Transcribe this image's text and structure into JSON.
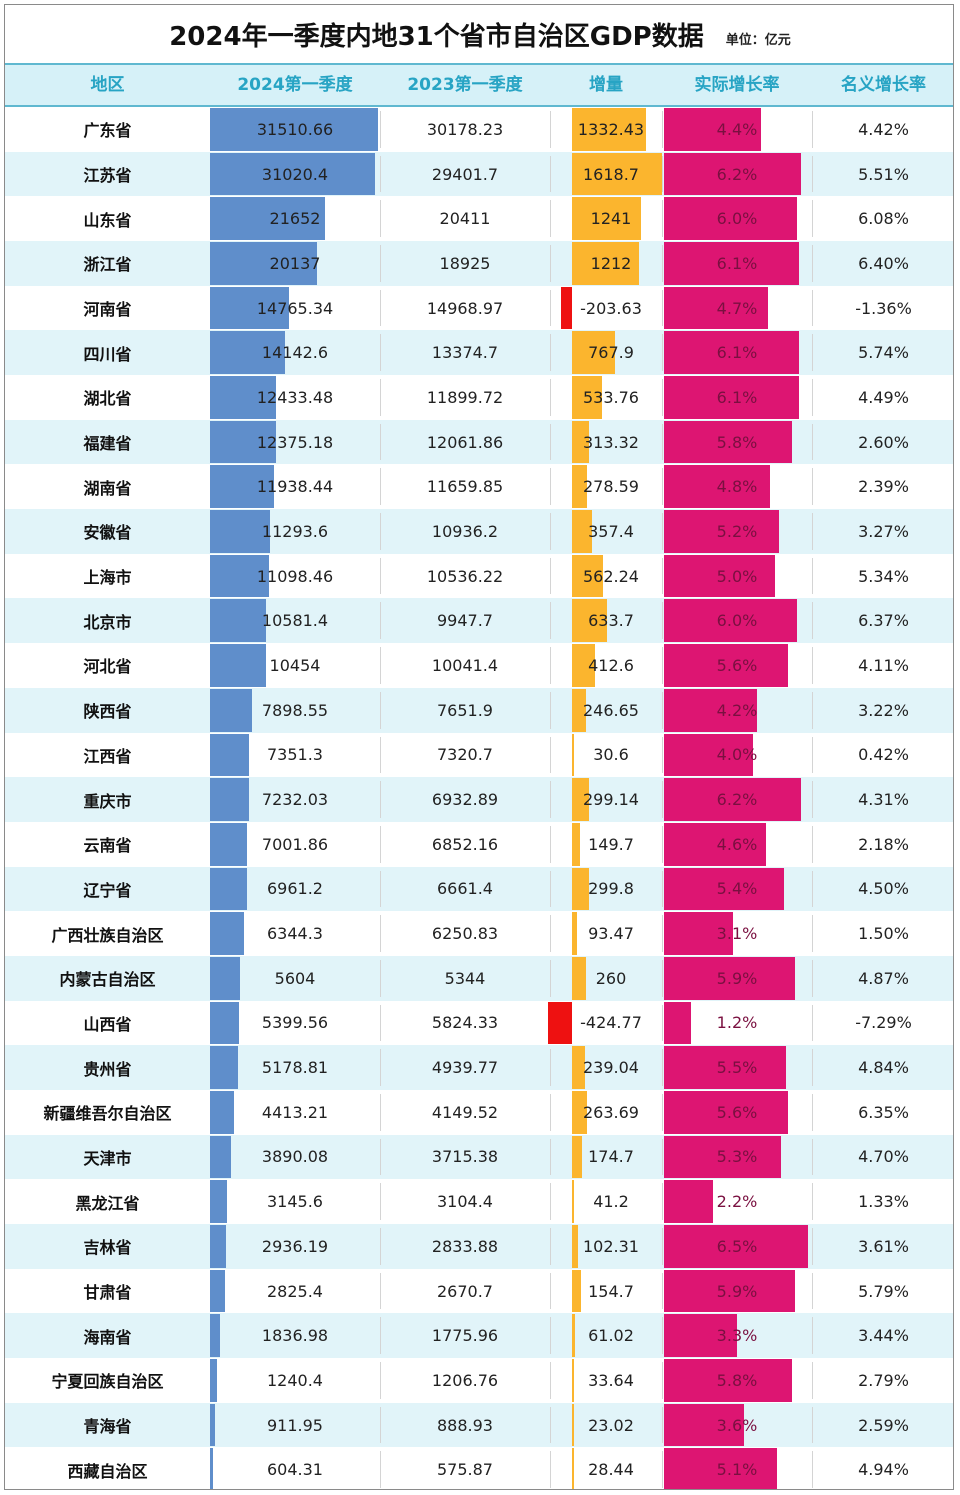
{
  "title": "2024年一季度内地31个省市自治区GDP数据",
  "unit_label": "单位：亿元",
  "headers": [
    "地区",
    "2024第一季度",
    "2023第一季度",
    "增量",
    "实际增长率",
    "名义增长率"
  ],
  "colors": {
    "gdp_bar": "#5f8ecb",
    "increase_bar": "#fbb52e",
    "decrease_bar": "#ee1111",
    "real_growth_bar": "#dd1572",
    "header_bg": "#d6f1f8",
    "header_text": "#27a4c4",
    "alt_row_bg": "#e1f4f9"
  },
  "rows": [
    {
      "region": "广东省",
      "gdp_2024": "31510.66",
      "gdp_2023": "30178.23",
      "increase": "1332.43",
      "real_growth": "4.4%",
      "nominal_growth": "4.42%"
    },
    {
      "region": "江苏省",
      "gdp_2024": "31020.4",
      "gdp_2023": "29401.7",
      "increase": "1618.7",
      "real_growth": "6.2%",
      "nominal_growth": "5.51%"
    },
    {
      "region": "山东省",
      "gdp_2024": "21652",
      "gdp_2023": "20411",
      "increase": "1241",
      "real_growth": "6.0%",
      "nominal_growth": "6.08%"
    },
    {
      "region": "浙江省",
      "gdp_2024": "20137",
      "gdp_2023": "18925",
      "increase": "1212",
      "real_growth": "6.1%",
      "nominal_growth": "6.40%"
    },
    {
      "region": "河南省",
      "gdp_2024": "14765.34",
      "gdp_2023": "14968.97",
      "increase": "-203.63",
      "real_growth": "4.7%",
      "nominal_growth": "-1.36%"
    },
    {
      "region": "四川省",
      "gdp_2024": "14142.6",
      "gdp_2023": "13374.7",
      "increase": "767.9",
      "real_growth": "6.1%",
      "nominal_growth": "5.74%"
    },
    {
      "region": "湖北省",
      "gdp_2024": "12433.48",
      "gdp_2023": "11899.72",
      "increase": "533.76",
      "real_growth": "6.1%",
      "nominal_growth": "4.49%"
    },
    {
      "region": "福建省",
      "gdp_2024": "12375.18",
      "gdp_2023": "12061.86",
      "increase": "313.32",
      "real_growth": "5.8%",
      "nominal_growth": "2.60%"
    },
    {
      "region": "湖南省",
      "gdp_2024": "11938.44",
      "gdp_2023": "11659.85",
      "increase": "278.59",
      "real_growth": "4.8%",
      "nominal_growth": "2.39%"
    },
    {
      "region": "安徽省",
      "gdp_2024": "11293.6",
      "gdp_2023": "10936.2",
      "increase": "357.4",
      "real_growth": "5.2%",
      "nominal_growth": "3.27%"
    },
    {
      "region": "上海市",
      "gdp_2024": "11098.46",
      "gdp_2023": "10536.22",
      "increase": "562.24",
      "real_growth": "5.0%",
      "nominal_growth": "5.34%"
    },
    {
      "region": "北京市",
      "gdp_2024": "10581.4",
      "gdp_2023": "9947.7",
      "increase": "633.7",
      "real_growth": "6.0%",
      "nominal_growth": "6.37%"
    },
    {
      "region": "河北省",
      "gdp_2024": "10454",
      "gdp_2023": "10041.4",
      "increase": "412.6",
      "real_growth": "5.6%",
      "nominal_growth": "4.11%"
    },
    {
      "region": "陕西省",
      "gdp_2024": "7898.55",
      "gdp_2023": "7651.9",
      "increase": "246.65",
      "real_growth": "4.2%",
      "nominal_growth": "3.22%"
    },
    {
      "region": "江西省",
      "gdp_2024": "7351.3",
      "gdp_2023": "7320.7",
      "increase": "30.6",
      "real_growth": "4.0%",
      "nominal_growth": "0.42%"
    },
    {
      "region": "重庆市",
      "gdp_2024": "7232.03",
      "gdp_2023": "6932.89",
      "increase": "299.14",
      "real_growth": "6.2%",
      "nominal_growth": "4.31%"
    },
    {
      "region": "云南省",
      "gdp_2024": "7001.86",
      "gdp_2023": "6852.16",
      "increase": "149.7",
      "real_growth": "4.6%",
      "nominal_growth": "2.18%"
    },
    {
      "region": "辽宁省",
      "gdp_2024": "6961.2",
      "gdp_2023": "6661.4",
      "increase": "299.8",
      "real_growth": "5.4%",
      "nominal_growth": "4.50%"
    },
    {
      "region": "广西壮族自治区",
      "gdp_2024": "6344.3",
      "gdp_2023": "6250.83",
      "increase": "93.47",
      "real_growth": "3.1%",
      "nominal_growth": "1.50%"
    },
    {
      "region": "内蒙古自治区",
      "gdp_2024": "5604",
      "gdp_2023": "5344",
      "increase": "260",
      "real_growth": "5.9%",
      "nominal_growth": "4.87%"
    },
    {
      "region": "山西省",
      "gdp_2024": "5399.56",
      "gdp_2023": "5824.33",
      "increase": "-424.77",
      "real_growth": "1.2%",
      "nominal_growth": "-7.29%"
    },
    {
      "region": "贵州省",
      "gdp_2024": "5178.81",
      "gdp_2023": "4939.77",
      "increase": "239.04",
      "real_growth": "5.5%",
      "nominal_growth": "4.84%"
    },
    {
      "region": "新疆维吾尔自治区",
      "gdp_2024": "4413.21",
      "gdp_2023": "4149.52",
      "increase": "263.69",
      "real_growth": "5.6%",
      "nominal_growth": "6.35%"
    },
    {
      "region": "天津市",
      "gdp_2024": "3890.08",
      "gdp_2023": "3715.38",
      "increase": "174.7",
      "real_growth": "5.3%",
      "nominal_growth": "4.70%"
    },
    {
      "region": "黑龙江省",
      "gdp_2024": "3145.6",
      "gdp_2023": "3104.4",
      "increase": "41.2",
      "real_growth": "2.2%",
      "nominal_growth": "1.33%"
    },
    {
      "region": "吉林省",
      "gdp_2024": "2936.19",
      "gdp_2023": "2833.88",
      "increase": "102.31",
      "real_growth": "6.5%",
      "nominal_growth": "3.61%"
    },
    {
      "region": "甘肃省",
      "gdp_2024": "2825.4",
      "gdp_2023": "2670.7",
      "increase": "154.7",
      "real_growth": "5.9%",
      "nominal_growth": "5.79%"
    },
    {
      "region": "海南省",
      "gdp_2024": "1836.98",
      "gdp_2023": "1775.96",
      "increase": "61.02",
      "real_growth": "3.3%",
      "nominal_growth": "3.44%"
    },
    {
      "region": "宁夏回族自治区",
      "gdp_2024": "1240.4",
      "gdp_2023": "1206.76",
      "increase": "33.64",
      "real_growth": "5.8%",
      "nominal_growth": "2.79%"
    },
    {
      "region": "青海省",
      "gdp_2024": "911.95",
      "gdp_2023": "888.93",
      "increase": "23.02",
      "real_growth": "3.6%",
      "nominal_growth": "2.59%"
    },
    {
      "region": "西藏自治区",
      "gdp_2024": "604.31",
      "gdp_2023": "575.87",
      "increase": "28.44",
      "real_growth": "5.1%",
      "nominal_growth": "4.94%"
    }
  ],
  "chart_data": {
    "type": "table",
    "title": "2024年一季度内地31个省市自治区GDP数据",
    "unit": "单位：亿元",
    "columns": [
      "地区",
      "2024第一季度",
      "2023第一季度",
      "增量",
      "实际增长率",
      "名义增长率"
    ],
    "categories": [
      "广东省",
      "江苏省",
      "山东省",
      "浙江省",
      "河南省",
      "四川省",
      "湖北省",
      "福建省",
      "湖南省",
      "安徽省",
      "上海市",
      "北京市",
      "河北省",
      "陕西省",
      "江西省",
      "重庆市",
      "云南省",
      "辽宁省",
      "广西壮族自治区",
      "内蒙古自治区",
      "山西省",
      "贵州省",
      "新疆维吾尔自治区",
      "天津市",
      "黑龙江省",
      "吉林省",
      "甘肃省",
      "海南省",
      "宁夏回族自治区",
      "青海省",
      "西藏自治区"
    ],
    "series": [
      {
        "name": "2024第一季度",
        "values": [
          31510.66,
          31020.4,
          21652,
          20137,
          14765.34,
          14142.6,
          12433.48,
          12375.18,
          11938.44,
          11293.6,
          11098.46,
          10581.4,
          10454,
          7898.55,
          7351.3,
          7232.03,
          7001.86,
          6961.2,
          6344.3,
          5604,
          5399.56,
          5178.81,
          4413.21,
          3890.08,
          3145.6,
          2936.19,
          2825.4,
          1836.98,
          1240.4,
          911.95,
          604.31
        ]
      },
      {
        "name": "2023第一季度",
        "values": [
          30178.23,
          29401.7,
          20411,
          18925,
          14968.97,
          13374.7,
          11899.72,
          12061.86,
          11659.85,
          10936.2,
          10536.22,
          9947.7,
          10041.4,
          7651.9,
          7320.7,
          6932.89,
          6852.16,
          6661.4,
          6250.83,
          5344,
          5824.33,
          4939.77,
          4149.52,
          3715.38,
          3104.4,
          2833.88,
          2670.7,
          1775.96,
          1206.76,
          888.93,
          575.87
        ]
      },
      {
        "name": "增量",
        "values": [
          1332.43,
          1618.7,
          1241,
          1212,
          -203.63,
          767.9,
          533.76,
          313.32,
          278.59,
          357.4,
          562.24,
          633.7,
          412.6,
          246.65,
          30.6,
          299.14,
          149.7,
          299.8,
          93.47,
          260,
          -424.77,
          239.04,
          263.69,
          174.7,
          41.2,
          102.31,
          154.7,
          61.02,
          33.64,
          23.02,
          28.44
        ]
      },
      {
        "name": "实际增长率",
        "values": [
          4.4,
          6.2,
          6.0,
          6.1,
          4.7,
          6.1,
          6.1,
          5.8,
          4.8,
          5.2,
          5.0,
          6.0,
          5.6,
          4.2,
          4.0,
          6.2,
          4.6,
          5.4,
          3.1,
          5.9,
          1.2,
          5.5,
          5.6,
          5.3,
          2.2,
          6.5,
          5.9,
          3.3,
          5.8,
          3.6,
          5.1
        ]
      },
      {
        "name": "名义增长率",
        "values": [
          4.42,
          5.51,
          6.08,
          6.4,
          -1.36,
          5.74,
          4.49,
          2.6,
          2.39,
          3.27,
          5.34,
          6.37,
          4.11,
          3.22,
          0.42,
          4.31,
          2.18,
          4.5,
          1.5,
          4.87,
          -7.29,
          4.84,
          6.35,
          4.7,
          1.33,
          3.61,
          5.79,
          3.44,
          2.79,
          2.59,
          4.94
        ]
      }
    ]
  }
}
